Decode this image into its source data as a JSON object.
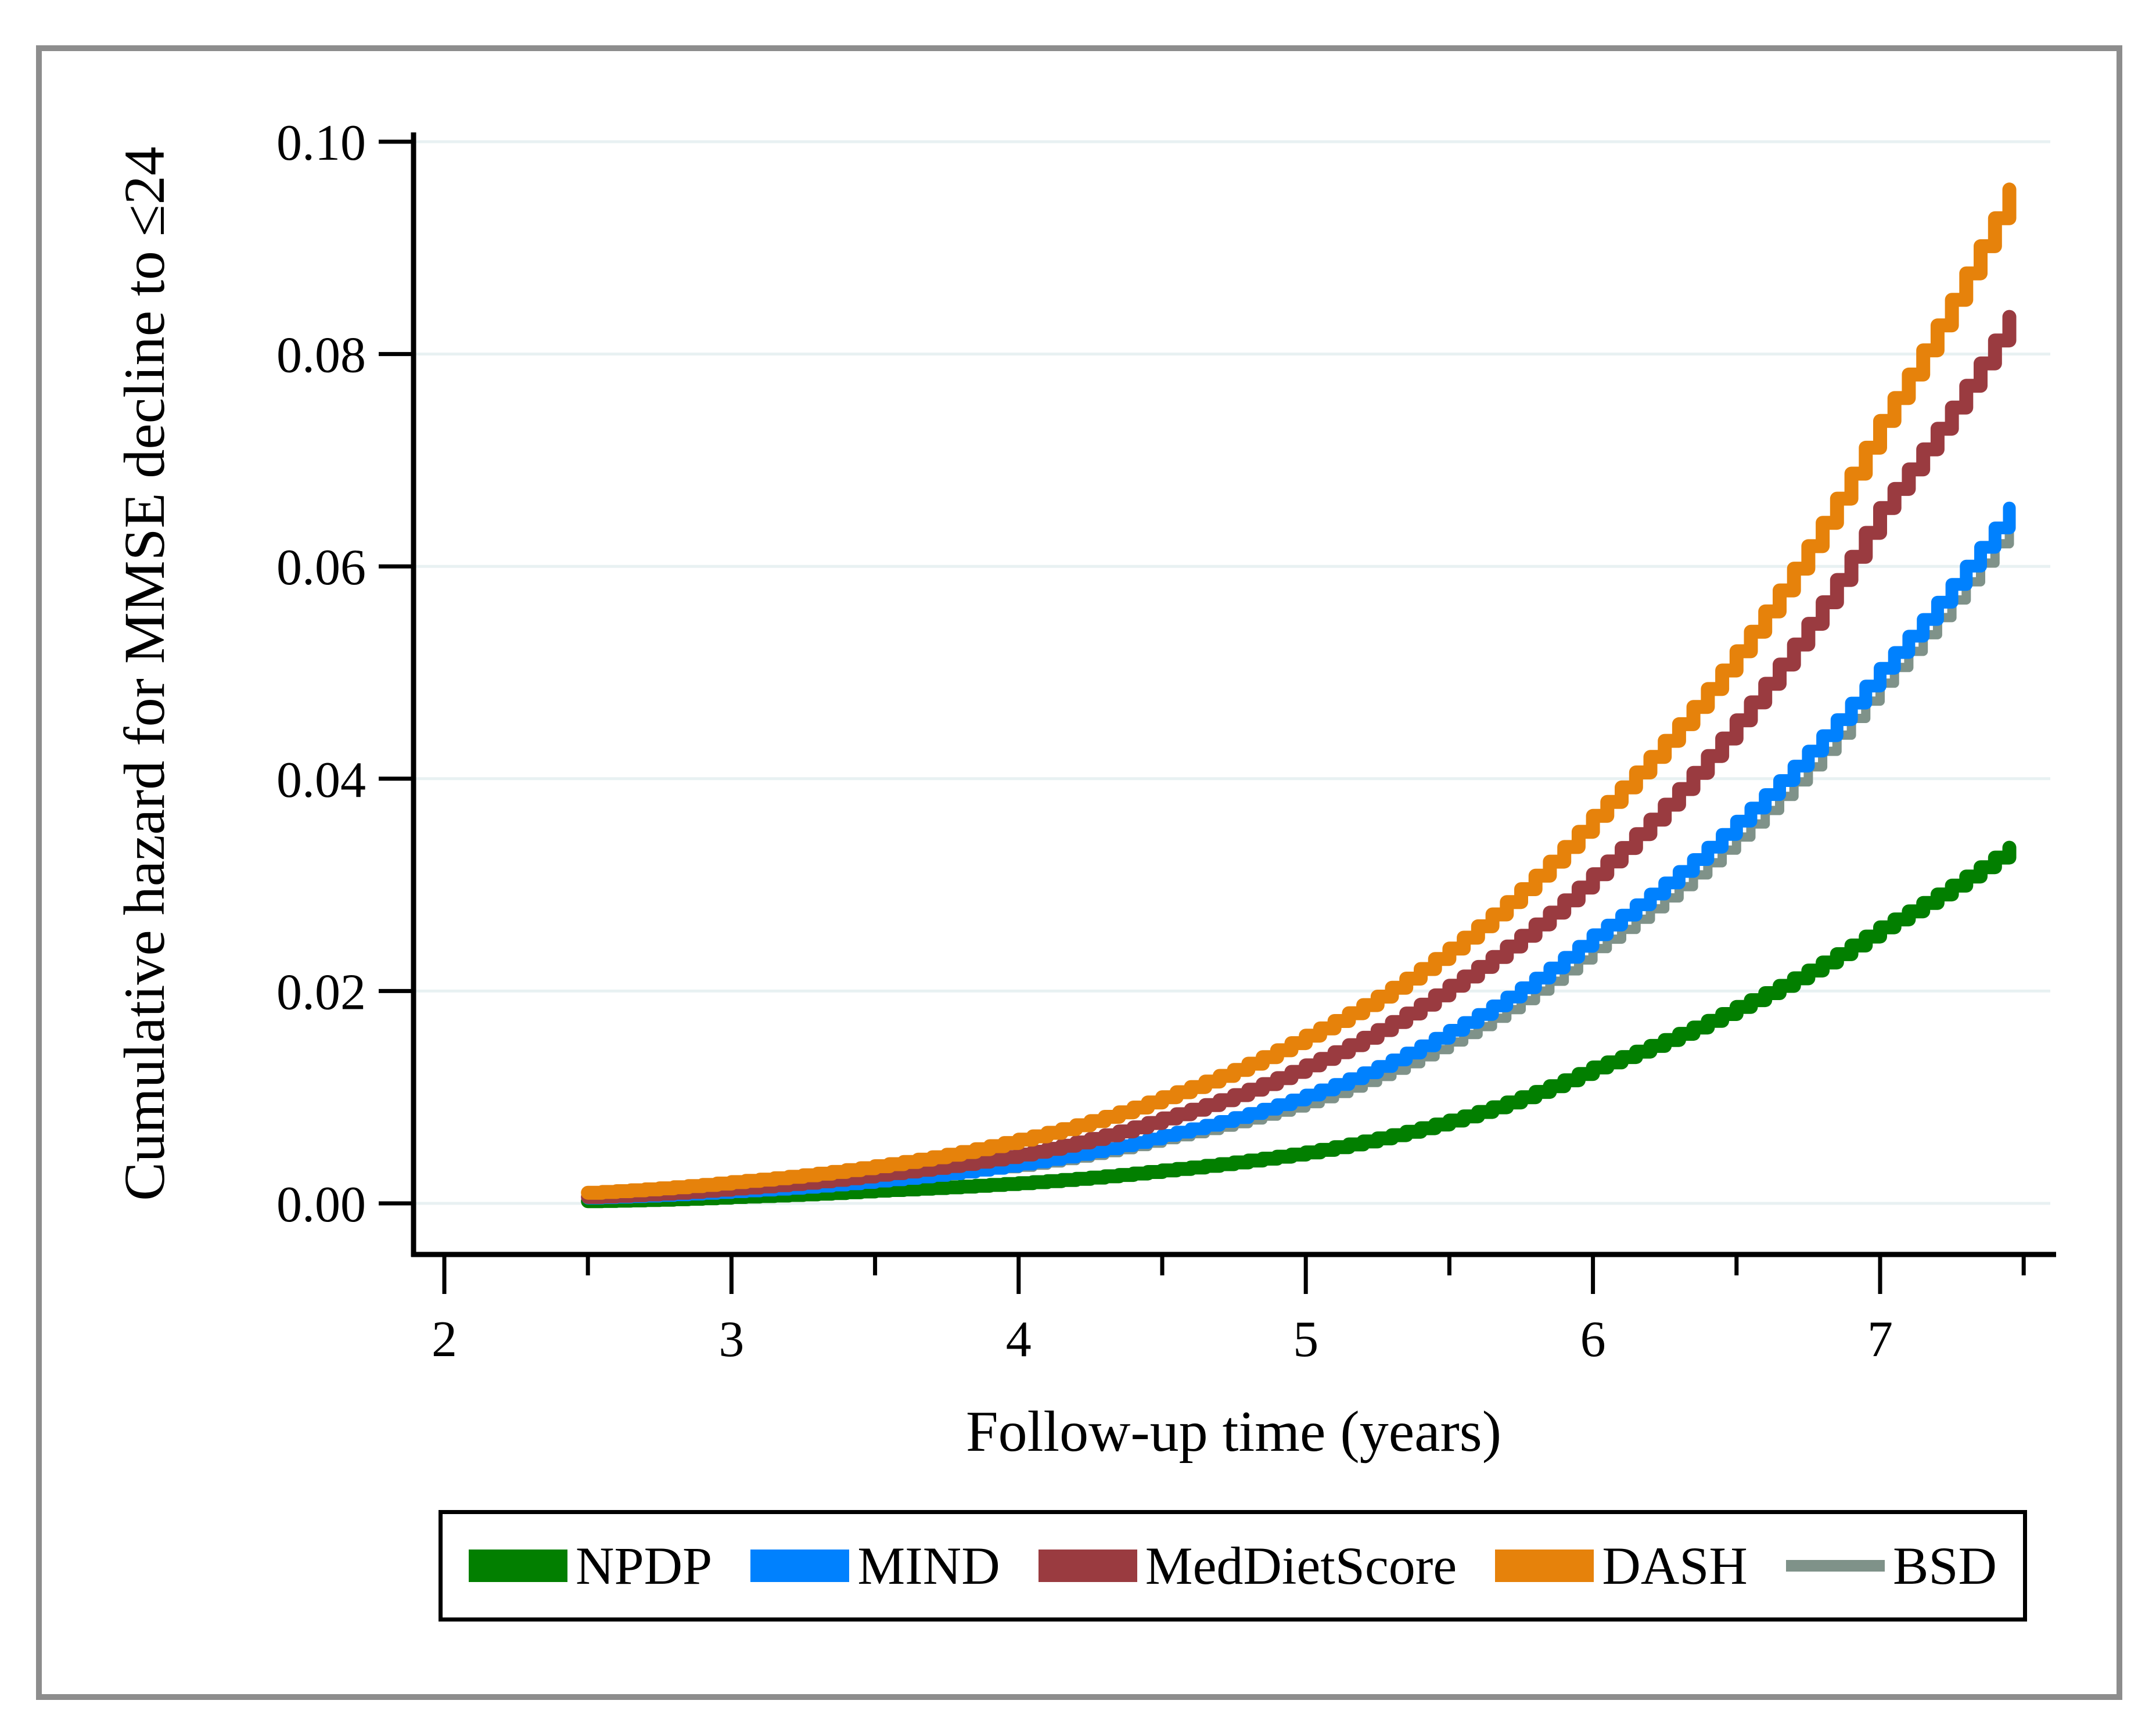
{
  "figure": {
    "background_color": "#ffffff",
    "outer_border_color": "#8d8d8d",
    "gridline_color": "#e8f1f2",
    "axis_color": "#000000"
  },
  "chart_data": {
    "type": "line",
    "subtype": "cumulative-hazard-step-curves",
    "title": "",
    "xlabel": "Follow-up time (years)",
    "ylabel": "Cumulative hazard for MMSE decline to ≤24",
    "xlim": [
      1.87,
      7.62
    ],
    "ylim": [
      0,
      0.1
    ],
    "grid": true,
    "legend_position": "bottom",
    "x_ticks": [
      {
        "value": 2,
        "label": "2"
      },
      {
        "value": 3,
        "label": "3"
      },
      {
        "value": 4,
        "label": "4"
      },
      {
        "value": 5,
        "label": "5"
      },
      {
        "value": 6,
        "label": "6"
      },
      {
        "value": 7,
        "label": "7"
      }
    ],
    "x_minor_ticks": [
      2.5,
      3.5,
      4.5,
      5.5,
      6.5,
      7.5
    ],
    "y_ticks": [
      {
        "value": 0.0,
        "label": "0.00"
      },
      {
        "value": 0.02,
        "label": "0.02"
      },
      {
        "value": 0.04,
        "label": "0.04"
      },
      {
        "value": 0.06,
        "label": "0.06"
      },
      {
        "value": 0.08,
        "label": "0.08"
      },
      {
        "value": 0.1,
        "label": "0.10"
      }
    ],
    "series": [
      {
        "name": "NPDP",
        "color": "#027f00",
        "line_width": 24,
        "x": [
          2.5,
          3,
          3.5,
          4,
          4.5,
          5,
          5.5,
          6,
          6.5,
          7,
          7.45
        ],
        "values": [
          0.0002,
          0.0006,
          0.0012,
          0.0019,
          0.0031,
          0.0048,
          0.0078,
          0.0128,
          0.0185,
          0.026,
          0.0335
        ]
      },
      {
        "name": "BSD",
        "color": "#7f9289",
        "line_width": 16,
        "x": [
          2.5,
          3,
          3.5,
          4,
          4.5,
          5,
          5.5,
          6,
          6.5,
          7,
          7.45
        ],
        "values": [
          0.0004,
          0.0013,
          0.0023,
          0.0034,
          0.006,
          0.0094,
          0.0152,
          0.024,
          0.0345,
          0.049,
          0.064
        ]
      },
      {
        "name": "MIND",
        "color": "#0081fe",
        "line_width": 22,
        "x": [
          2.5,
          3,
          3.5,
          4,
          4.5,
          5,
          5.5,
          6,
          6.5,
          7,
          7.45
        ],
        "values": [
          0.0005,
          0.0011,
          0.0021,
          0.0037,
          0.0064,
          0.0102,
          0.0163,
          0.0253,
          0.036,
          0.0504,
          0.0655
        ]
      },
      {
        "name": "MedDietScore",
        "color": "#9a3b40",
        "line_width": 24,
        "x": [
          2.5,
          3,
          3.5,
          4,
          4.5,
          5,
          5.5,
          6,
          6.5,
          7,
          7.45
        ],
        "values": [
          0.0006,
          0.0014,
          0.0027,
          0.0046,
          0.008,
          0.013,
          0.0205,
          0.031,
          0.0455,
          0.0655,
          0.0835
        ]
      },
      {
        "name": "DASH",
        "color": "#e6820b",
        "line_width": 24,
        "x": [
          2.5,
          3,
          3.5,
          4,
          4.5,
          5,
          5.5,
          6,
          6.5,
          7,
          7.45
        ],
        "values": [
          0.001,
          0.002,
          0.0035,
          0.006,
          0.01,
          0.0158,
          0.024,
          0.0365,
          0.052,
          0.0737,
          0.0955
        ]
      }
    ]
  },
  "legend": {
    "items": [
      {
        "label": "NPDP",
        "color": "#027f00",
        "swatch": "thick"
      },
      {
        "label": "MIND",
        "color": "#0081fe",
        "swatch": "thick"
      },
      {
        "label": "MedDietScore",
        "color": "#9a3b40",
        "swatch": "thick"
      },
      {
        "label": "DASH",
        "color": "#e6820b",
        "swatch": "thick"
      },
      {
        "label": "BSD",
        "color": "#7f9289",
        "swatch": "thin"
      }
    ]
  }
}
